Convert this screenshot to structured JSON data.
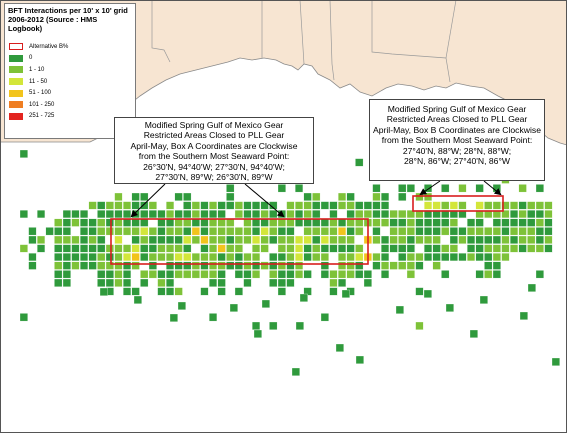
{
  "legend": {
    "title_line1": "BFT Interactions per 10' x 10' grid",
    "title_line2": "2006-2012 (Source : HMS Logbook)",
    "items": [
      {
        "label": "Alternative B%",
        "color": "#d81e1e",
        "outline": true
      },
      {
        "label": "0",
        "color": "#2f9a3c"
      },
      {
        "label": "1 - 10",
        "color": "#7ec238"
      },
      {
        "label": "11 - 50",
        "color": "#d3e63a"
      },
      {
        "label": "51 - 100",
        "color": "#f2c41c"
      },
      {
        "label": "101 - 250",
        "color": "#ef7e22"
      },
      {
        "label": "251 - 725",
        "color": "#e3241f"
      }
    ]
  },
  "callout_a": {
    "lines": [
      "Modified Spring Gulf of Mexico Gear",
      "Restricted Areas Closed to PLL Gear",
      "April-May, Box A Coordinates are Clockwise",
      "from the Southern Most Seaward Point:",
      "26°30'N, 94°40'W; 27°30'N, 94°40'W;",
      "27°30'N, 89°W; 26°30'N, 89°W"
    ]
  },
  "callout_b": {
    "lines": [
      "Modified Spring Gulf of Mexico Gear",
      "Restricted Areas Closed to PLL Gear",
      "April-May, Box B Coordinates are Clockwise",
      "from the Southern Most Seaward Point:",
      "27°40'N, 88°W; 28°N, 88°W;",
      "28°N, 86°W; 27°40'N, 86°W"
    ]
  },
  "colors": {
    "land": "#f7e5d2",
    "water": "#ffffff",
    "box_outline": "#d81e1e"
  }
}
